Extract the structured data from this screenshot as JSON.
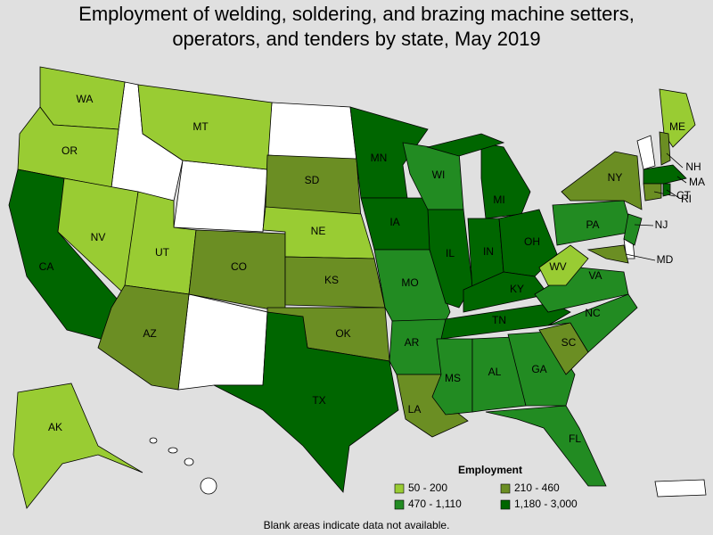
{
  "title": "Employment of welding, soldering, and brazing machine setters, operators, and tenders by state, May 2019",
  "states": [
    {
      "label": "WA",
      "color": "#99cc33"
    },
    {
      "label": "OR",
      "color": "#99cc33"
    },
    {
      "label": "CA",
      "color": "#006600"
    },
    {
      "label": "NV",
      "color": "#99cc33"
    },
    {
      "label": "UT",
      "color": "#99cc33"
    },
    {
      "label": "AZ",
      "color": "#6b8e23"
    },
    {
      "label": "MT",
      "color": "#99cc33"
    },
    {
      "label": "CO",
      "color": "#6b8e23"
    },
    {
      "label": "SD",
      "color": "#6b8e23"
    },
    {
      "label": "NE",
      "color": "#99cc33"
    },
    {
      "label": "KS",
      "color": "#6b8e23"
    },
    {
      "label": "OK",
      "color": "#6b8e23"
    },
    {
      "label": "TX",
      "color": "#006600"
    },
    {
      "label": "MN",
      "color": "#006600"
    },
    {
      "label": "IA",
      "color": "#006600"
    },
    {
      "label": "MO",
      "color": "#228b22"
    },
    {
      "label": "AR",
      "color": "#228b22"
    },
    {
      "label": "LA",
      "color": "#6b8e23"
    },
    {
      "label": "WI",
      "color": "#228b22"
    },
    {
      "label": "IL",
      "color": "#006600"
    },
    {
      "label": "MI",
      "color": "#006600"
    },
    {
      "label": "IN",
      "color": "#006600"
    },
    {
      "label": "OH",
      "color": "#006600"
    },
    {
      "label": "KY",
      "color": "#006600"
    },
    {
      "label": "TN",
      "color": "#006600"
    },
    {
      "label": "MS",
      "color": "#228b22"
    },
    {
      "label": "AL",
      "color": "#228b22"
    },
    {
      "label": "GA",
      "color": "#228b22"
    },
    {
      "label": "FL",
      "color": "#228b22"
    },
    {
      "label": "SC",
      "color": "#6b8e23"
    },
    {
      "label": "NC",
      "color": "#228b22"
    },
    {
      "label": "VA",
      "color": "#228b22"
    },
    {
      "label": "WV",
      "color": "#99cc33"
    },
    {
      "label": "PA",
      "color": "#228b22"
    },
    {
      "label": "NY",
      "color": "#6b8e23"
    },
    {
      "label": "NJ",
      "color": "#228b22"
    },
    {
      "label": "MD",
      "color": "#6b8e23"
    },
    {
      "label": "ME",
      "color": "#99cc33"
    },
    {
      "label": "NH",
      "color": "#6b8e23"
    },
    {
      "label": "MA",
      "color": "#006600"
    },
    {
      "label": "CT",
      "color": "#6b8e23"
    },
    {
      "label": "RI",
      "color": "#006600"
    },
    {
      "label": "AK",
      "color": "#99cc33"
    }
  ],
  "legend": {
    "title": "Employment",
    "items": [
      {
        "label": "50 - 200",
        "color": "#99cc33"
      },
      {
        "label": "210 - 460",
        "color": "#6b8e23"
      },
      {
        "label": "470 - 1,110",
        "color": "#228b22"
      },
      {
        "label": "1,180 - 3,000",
        "color": "#006600"
      }
    ]
  },
  "note": "Blank areas indicate data not available."
}
